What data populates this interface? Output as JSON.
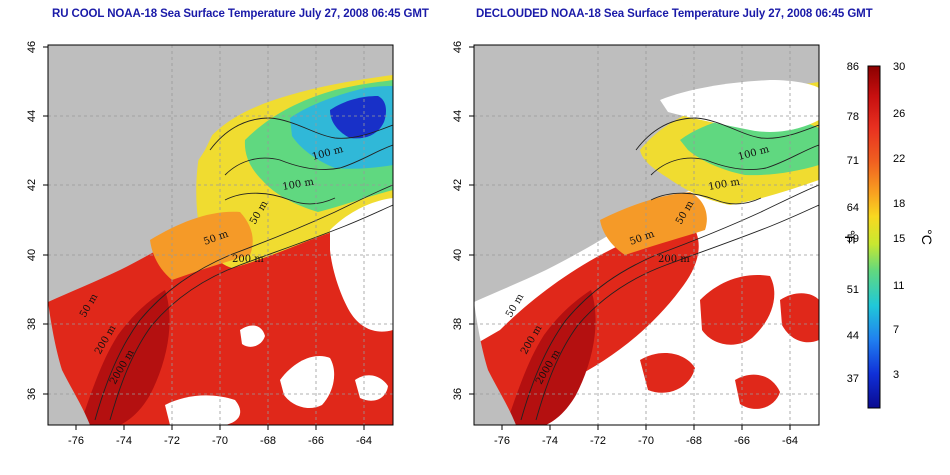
{
  "panels": [
    {
      "id": "left",
      "title": "RU COOL NOAA-18 Sea Surface Temperature July 27, 2008 06:45 GMT",
      "isobath_labels": [
        "100 m",
        "100 m",
        "50 m",
        "200 m",
        "50 m",
        "200 m",
        "50 m",
        "2000 m"
      ]
    },
    {
      "id": "right",
      "title": "DECLOUDED NOAA-18 Sea Surface Temperature July 27, 2008 06:45 GMT",
      "isobath_labels": [
        "100 m",
        "100 m",
        "50 m",
        "200 m",
        "50 m",
        "200 m",
        "50 m",
        "2000 m"
      ]
    }
  ],
  "axes": {
    "x_ticks": [
      "-76",
      "-74",
      "-72",
      "-70",
      "-68",
      "-66",
      "-64"
    ],
    "y_ticks": [
      "46",
      "44",
      "42",
      "40",
      "38",
      "36"
    ]
  },
  "colorbar": {
    "fahrenheit_ticks": [
      "86",
      "78",
      "71",
      "64",
      "59",
      "51",
      "44",
      "37"
    ],
    "celsius_ticks": [
      "30",
      "26",
      "22",
      "18",
      "15",
      "11",
      "7",
      "3"
    ],
    "fahrenheit_unit": "°F",
    "celsius_unit": "°C",
    "colors": [
      "#8b0000",
      "#c81010",
      "#e83020",
      "#f06020",
      "#f8a020",
      "#f8d820",
      "#c8e830",
      "#60d880",
      "#20c8d8",
      "#2080f0",
      "#1030d8",
      "#0a0a90"
    ]
  },
  "map_colors": {
    "land": "#bebebe",
    "cloud": "#ffffff",
    "warm": "#e0281a",
    "hot": "#b41010",
    "mid": "#f59a28",
    "cool": "#f0dc30",
    "colder": "#30b8d8",
    "coldest": "#1830c8"
  }
}
